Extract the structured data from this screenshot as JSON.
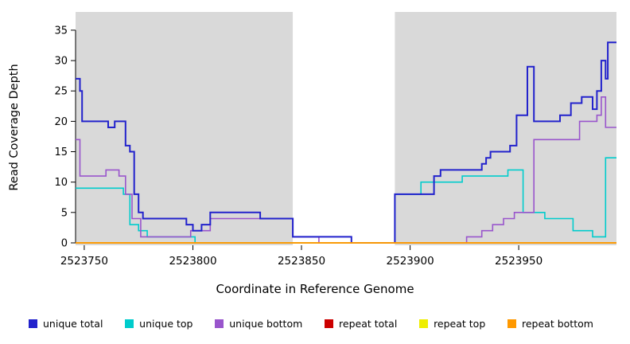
{
  "chart_data": {
    "type": "line",
    "style": "step-after",
    "title": "",
    "xlabel": "Coordinate in Reference Genome",
    "ylabel": "Read Coverage Depth",
    "xlim": [
      2523746,
      2523995
    ],
    "ylim": [
      0,
      38
    ],
    "x_ticks": [
      2523750,
      2523800,
      2523850,
      2523900,
      2523950
    ],
    "y_ticks": [
      0,
      5,
      10,
      15,
      20,
      25,
      30,
      35
    ],
    "grid": false,
    "legend_position": "bottom",
    "background_regions": [
      {
        "name": "covered-left",
        "x0": 2523746,
        "x1": 2523846,
        "color": "#d9d9d9"
      },
      {
        "name": "gap",
        "x0": 2523846,
        "x1": 2523893,
        "color": "#ffffff"
      },
      {
        "name": "covered-right",
        "x0": 2523893,
        "x1": 2523995,
        "color": "#d9d9d9"
      }
    ],
    "series": [
      {
        "name": "unique total",
        "color": "#2222cc",
        "width": 2,
        "points": [
          [
            2523746,
            27
          ],
          [
            2523748,
            25
          ],
          [
            2523749,
            20
          ],
          [
            2523761,
            19
          ],
          [
            2523764,
            20
          ],
          [
            2523769,
            16
          ],
          [
            2523771,
            15
          ],
          [
            2523773,
            8
          ],
          [
            2523775,
            5
          ],
          [
            2523777,
            4
          ],
          [
            2523797,
            3
          ],
          [
            2523800,
            2
          ],
          [
            2523804,
            3
          ],
          [
            2523808,
            5
          ],
          [
            2523831,
            4
          ],
          [
            2523846,
            1
          ],
          [
            2523873,
            0
          ],
          [
            2523893,
            8
          ],
          [
            2523911,
            11
          ],
          [
            2523914,
            12
          ],
          [
            2523933,
            13
          ],
          [
            2523935,
            14
          ],
          [
            2523937,
            15
          ],
          [
            2523946,
            16
          ],
          [
            2523949,
            21
          ],
          [
            2523954,
            29
          ],
          [
            2523957,
            20
          ],
          [
            2523969,
            21
          ],
          [
            2523974,
            23
          ],
          [
            2523979,
            24
          ],
          [
            2523984,
            22
          ],
          [
            2523986,
            25
          ],
          [
            2523988,
            30
          ],
          [
            2523990,
            27
          ],
          [
            2523991,
            33
          ]
        ]
      },
      {
        "name": "unique top",
        "color": "#00cccc",
        "width": 1.6,
        "points": [
          [
            2523746,
            9
          ],
          [
            2523768,
            8
          ],
          [
            2523771,
            3
          ],
          [
            2523775,
            2
          ],
          [
            2523779,
            1
          ],
          [
            2523801,
            0
          ],
          [
            2523893,
            8
          ],
          [
            2523905,
            10
          ],
          [
            2523924,
            11
          ],
          [
            2523945,
            12
          ],
          [
            2523952,
            5
          ],
          [
            2523962,
            4
          ],
          [
            2523975,
            2
          ],
          [
            2523984,
            1
          ],
          [
            2523990,
            14
          ]
        ]
      },
      {
        "name": "unique bottom",
        "color": "#9955cc",
        "width": 1.6,
        "points": [
          [
            2523746,
            17
          ],
          [
            2523748,
            11
          ],
          [
            2523760,
            12
          ],
          [
            2523766,
            11
          ],
          [
            2523769,
            8
          ],
          [
            2523772,
            4
          ],
          [
            2523776,
            1
          ],
          [
            2523799,
            2
          ],
          [
            2523808,
            4
          ],
          [
            2523846,
            1
          ],
          [
            2523858,
            0
          ],
          [
            2523926,
            1
          ],
          [
            2523933,
            2
          ],
          [
            2523938,
            3
          ],
          [
            2523943,
            4
          ],
          [
            2523948,
            5
          ],
          [
            2523957,
            17
          ],
          [
            2523978,
            20
          ],
          [
            2523986,
            21
          ],
          [
            2523988,
            24
          ],
          [
            2523990,
            19
          ]
        ]
      },
      {
        "name": "repeat total",
        "color": "#cc0000",
        "width": 1.6,
        "points": [
          [
            2523746,
            0
          ]
        ]
      },
      {
        "name": "repeat top",
        "color": "#eeee00",
        "width": 1.6,
        "points": [
          [
            2523746,
            0
          ]
        ]
      },
      {
        "name": "repeat bottom",
        "color": "#ff9900",
        "width": 1.8,
        "points": [
          [
            2523746,
            0
          ]
        ]
      }
    ],
    "draw_order": [
      "unique top",
      "unique bottom",
      "unique total",
      "repeat total",
      "repeat top",
      "repeat bottom"
    ],
    "legend": [
      {
        "label": "unique total",
        "color": "#2222cc"
      },
      {
        "label": "unique top",
        "color": "#00cccc"
      },
      {
        "label": "unique bottom",
        "color": "#9955cc"
      },
      {
        "label": "repeat total",
        "color": "#cc0000"
      },
      {
        "label": "repeat top",
        "color": "#eeee00"
      },
      {
        "label": "repeat bottom",
        "color": "#ff9900"
      }
    ]
  }
}
